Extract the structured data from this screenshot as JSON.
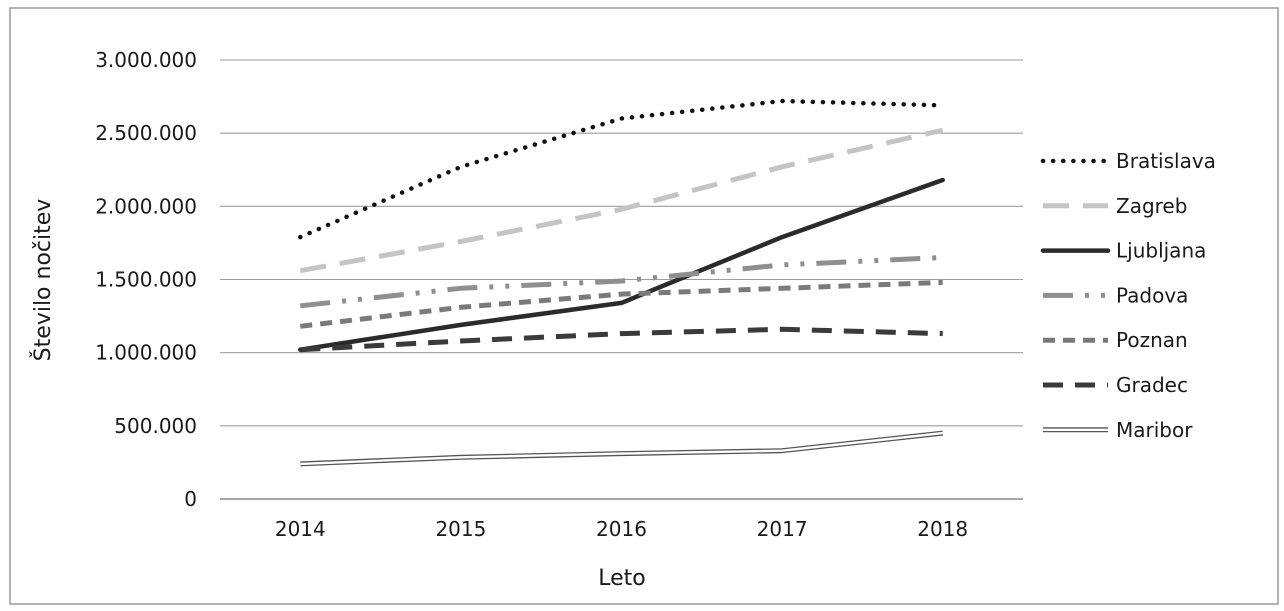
{
  "chart_data": {
    "type": "line",
    "title": "",
    "xlabel": "Leto",
    "ylabel": "Število nočitev",
    "x": [
      "2014",
      "2015",
      "2016",
      "2017",
      "2018"
    ],
    "ylim": [
      0,
      3000000
    ],
    "ytick_labels": [
      "0",
      "500.000",
      "1.000.000",
      "1.500.000",
      "2.000.000",
      "2.500.000",
      "3.000.000"
    ],
    "ytick_values": [
      0,
      500000,
      1000000,
      1500000,
      2000000,
      2500000,
      3000000
    ],
    "grid": "horizontal",
    "legend_position": "right",
    "series": [
      {
        "name": "Bratislava",
        "values": [
          1790000,
          2270000,
          2600000,
          2720000,
          2690000
        ],
        "color": "#111111",
        "style": "dotted"
      },
      {
        "name": "Zagreb",
        "values": [
          1560000,
          1760000,
          1980000,
          2270000,
          2520000
        ],
        "color": "#c4c4c4",
        "style": "dashed-long"
      },
      {
        "name": "Ljubljana",
        "values": [
          1020000,
          1190000,
          1340000,
          1790000,
          2180000
        ],
        "color": "#2b2b2b",
        "style": "solid"
      },
      {
        "name": "Padova",
        "values": [
          1320000,
          1440000,
          1490000,
          1600000,
          1650000
        ],
        "color": "#8f8f8f",
        "style": "dash-dot-dot"
      },
      {
        "name": "Poznan",
        "values": [
          1180000,
          1310000,
          1400000,
          1440000,
          1480000
        ],
        "color": "#7a7a7a",
        "style": "dashed-short"
      },
      {
        "name": "Gradec",
        "values": [
          1020000,
          1080000,
          1130000,
          1160000,
          1130000
        ],
        "color": "#3a3a3a",
        "style": "dashed-medium"
      },
      {
        "name": "Maribor",
        "values": [
          240000,
          285000,
          310000,
          330000,
          450000
        ],
        "color": "#555555",
        "style": "double"
      }
    ]
  }
}
